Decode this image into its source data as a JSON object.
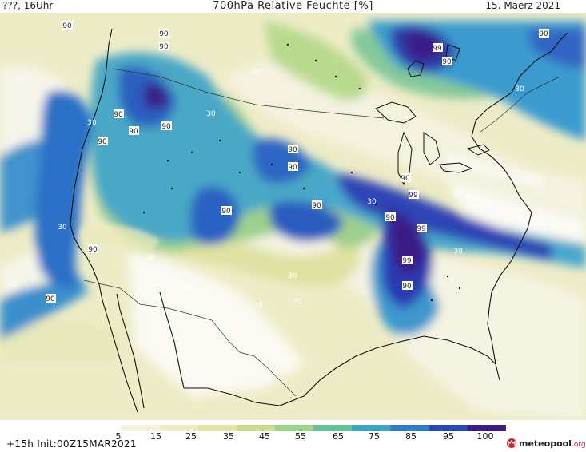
{
  "header": {
    "left": "???, 16Uhr",
    "title": "700hPa Relative Feuchte [%]",
    "right": "15. Maerz 2021"
  },
  "footer": {
    "left": "+15h Init:00Z15MAR2021"
  },
  "logo": {
    "name": "meteopool",
    "suffix": ".org"
  },
  "colorbar": {
    "labels": [
      "5",
      "15",
      "25",
      "35",
      "45",
      "55",
      "65",
      "75",
      "85",
      "95",
      "100"
    ],
    "colors": [
      "#ffffff",
      "#f4f1df",
      "#ecebc2",
      "#dfe3a3",
      "#c7de8a",
      "#9bd48a",
      "#62c39a",
      "#3aa7bf",
      "#2b7fcb",
      "#2748b5",
      "#3a1c86"
    ]
  },
  "contour_labels": [
    {
      "text": "90",
      "id": "l1"
    },
    {
      "text": "90",
      "id": "l2"
    },
    {
      "text": "90",
      "id": "l3"
    },
    {
      "text": "30",
      "id": "l4"
    },
    {
      "text": "99",
      "id": "l5"
    },
    {
      "text": "90",
      "id": "l6"
    },
    {
      "text": "90",
      "id": "l7"
    },
    {
      "text": "30",
      "id": "l8"
    },
    {
      "text": "30",
      "id": "l9"
    },
    {
      "text": "30",
      "id": "l10"
    },
    {
      "text": "30",
      "id": "l11"
    },
    {
      "text": "90",
      "id": "l12"
    },
    {
      "text": "90",
      "id": "l13"
    },
    {
      "text": "90",
      "id": "l14"
    },
    {
      "text": "90",
      "id": "l15"
    },
    {
      "text": "90",
      "id": "l16"
    },
    {
      "text": "90",
      "id": "l17"
    },
    {
      "text": "90",
      "id": "l18"
    },
    {
      "text": "90",
      "id": "l19"
    },
    {
      "text": "99",
      "id": "l20"
    },
    {
      "text": "30",
      "id": "l21"
    },
    {
      "text": "90",
      "id": "l22"
    },
    {
      "text": "99",
      "id": "l23"
    },
    {
      "text": "90",
      "id": "l24"
    },
    {
      "text": "30",
      "id": "l25"
    },
    {
      "text": "90",
      "id": "l26"
    },
    {
      "text": "99",
      "id": "l27"
    },
    {
      "text": "90",
      "id": "l28"
    },
    {
      "text": "30",
      "id": "l29"
    },
    {
      "text": "30",
      "id": "l30"
    },
    {
      "text": "30",
      "id": "l31"
    },
    {
      "text": "30",
      "id": "l32"
    },
    {
      "text": "30",
      "id": "l33"
    },
    {
      "text": "90",
      "id": "l34"
    },
    {
      "text": "30",
      "id": "l35"
    },
    {
      "text": "30",
      "id": "l36"
    },
    {
      "text": "30",
      "id": "l37"
    }
  ]
}
